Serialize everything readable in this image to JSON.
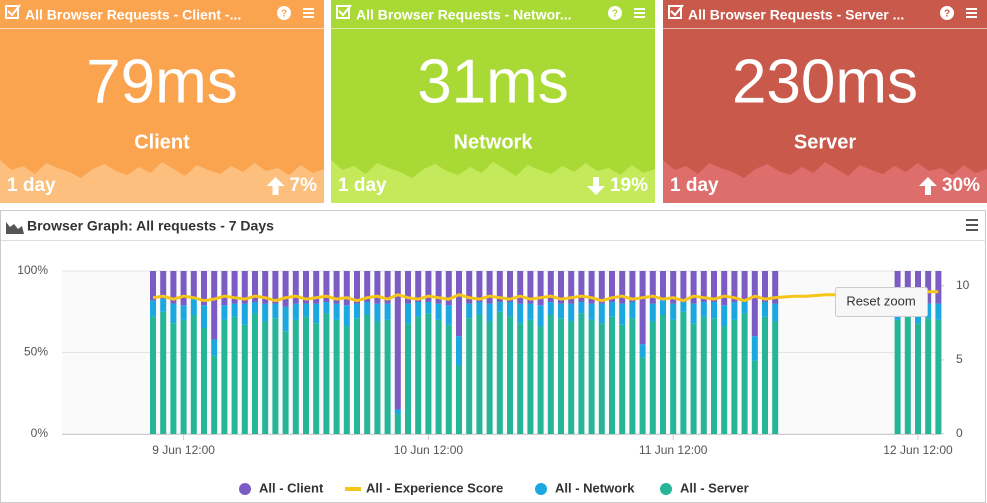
{
  "tiles": [
    {
      "title": "All Browser Requests - Client -...",
      "value": "79ms",
      "label": "Client",
      "period": "1 day",
      "change": "7%",
      "direction": "up",
      "color": "#fba44f",
      "spark": "#fdbf7e"
    },
    {
      "title": "All Browser Requests - Networ...",
      "value": "31ms",
      "label": "Network",
      "period": "1 day",
      "change": "19%",
      "direction": "down",
      "color": "#a8d934",
      "spark": "#c4ea5c"
    },
    {
      "title": "All Browser Requests - Server ...",
      "value": "230ms",
      "label": "Server",
      "period": "1 day",
      "change": "30%",
      "direction": "up",
      "color": "#c9594a",
      "spark": "#de6e6c"
    }
  ],
  "panel": {
    "title": "Browser Graph: All requests - 7 Days"
  },
  "reset_zoom": "Reset zoom",
  "chart_data": {
    "type": "bar",
    "stacked": true,
    "categories": [
      null,
      null,
      null,
      "9 Jun 12:00",
      null,
      null,
      null,
      null,
      null,
      null,
      null,
      null,
      null,
      null,
      null,
      null,
      null,
      null,
      null,
      null,
      null,
      null,
      null,
      null,
      null,
      null,
      null,
      "10 Jun 12:00",
      null,
      null,
      null,
      null,
      null,
      null,
      null,
      null,
      null,
      null,
      null,
      null,
      null,
      null,
      null,
      null,
      null,
      null,
      null,
      null,
      null,
      null,
      null,
      "11 Jun 12:00",
      null,
      null,
      null,
      null,
      null,
      null,
      null,
      null,
      null,
      null,
      null,
      null,
      null,
      null,
      null,
      null,
      null,
      null,
      null,
      null,
      null,
      null,
      null,
      "12 Jun 12:00",
      null,
      null
    ],
    "series": [
      {
        "name": "All - Client",
        "type": "bar",
        "color": "#7b5cc4",
        "values": [
          18,
          17,
          20,
          21,
          16,
          21,
          42,
          21,
          20,
          20,
          19,
          20,
          20,
          22,
          20,
          20,
          20,
          19,
          20,
          21,
          20,
          19,
          20,
          20,
          85,
          20,
          19,
          19,
          20,
          21,
          40,
          20,
          19,
          20,
          19,
          19,
          20,
          20,
          21,
          19,
          20,
          20,
          19,
          20,
          20,
          19,
          20,
          19,
          45,
          20,
          18,
          20,
          19,
          20,
          19,
          19,
          21,
          19,
          18,
          40,
          19,
          20,
          null,
          null,
          null,
          null,
          null,
          null,
          null,
          null,
          null,
          null,
          null,
          20,
          20,
          20,
          20,
          20
        ]
      },
      {
        "name": "All - Experience Score",
        "type": "line",
        "axis": "y2",
        "color": "#f5c518",
        "values": [
          9.2,
          9.3,
          9.1,
          9.3,
          9.2,
          9.0,
          9.1,
          9.3,
          9.2,
          9.1,
          9.3,
          9.2,
          9.0,
          9.2,
          9.3,
          9.1,
          9.2,
          9.3,
          9.1,
          9.2,
          9.0,
          9.2,
          9.3,
          9.1,
          9.4,
          9.2,
          9.1,
          9.3,
          9.2,
          9.1,
          9.4,
          9.2,
          9.1,
          9.3,
          9.2,
          9.1,
          9.3,
          9.1,
          9.2,
          9.3,
          9.1,
          9.2,
          9.3,
          9.2,
          9.0,
          9.2,
          9.3,
          9.1,
          9.2,
          9.3,
          9.1,
          9.2,
          9.0,
          9.3,
          9.2,
          9.1,
          9.3,
          9.2,
          9.0,
          9.3,
          9.1,
          9.2,
          9.25,
          9.3,
          9.3,
          9.35,
          9.4,
          9.4,
          9.45,
          9.5,
          9.5,
          9.55,
          9.6,
          9.6,
          9.6,
          9.6,
          9.6,
          9.6
        ]
      },
      {
        "name": "All - Network",
        "type": "bar",
        "color": "#1ba8e0",
        "values": [
          10,
          8,
          12,
          9,
          11,
          14,
          10,
          9,
          8,
          13,
          7,
          11,
          9,
          15,
          10,
          8,
          12,
          7,
          10,
          13,
          9,
          8,
          11,
          10,
          3,
          12,
          9,
          7,
          10,
          12,
          18,
          9,
          8,
          11,
          6,
          9,
          12,
          10,
          13,
          8,
          9,
          11,
          7,
          10,
          12,
          9,
          13,
          10,
          8,
          11,
          9,
          10,
          6,
          12,
          9,
          10,
          13,
          11,
          8,
          15,
          9,
          11,
          null,
          null,
          null,
          null,
          null,
          null,
          null,
          null,
          null,
          null,
          null,
          10,
          8,
          12,
          9,
          10
        ]
      },
      {
        "name": "All - Server",
        "type": "bar",
        "color": "#26b596",
        "values": [
          72,
          75,
          68,
          70,
          73,
          65,
          48,
          70,
          72,
          67,
          74,
          69,
          71,
          63,
          70,
          72,
          68,
          74,
          70,
          66,
          71,
          73,
          69,
          70,
          12,
          68,
          72,
          74,
          70,
          67,
          42,
          71,
          73,
          69,
          75,
          72,
          68,
          70,
          66,
          73,
          71,
          69,
          74,
          70,
          68,
          72,
          67,
          71,
          47,
          69,
          73,
          70,
          75,
          68,
          72,
          71,
          66,
          70,
          74,
          45,
          72,
          69,
          null,
          null,
          null,
          null,
          null,
          null,
          null,
          null,
          null,
          null,
          null,
          70,
          72,
          68,
          71,
          70
        ]
      }
    ],
    "ylim": [
      0,
      100
    ],
    "yticks": [
      {
        "value": 0,
        "label": "0%"
      },
      {
        "value": 50,
        "label": "50%"
      },
      {
        "value": 100,
        "label": "100%"
      }
    ],
    "y2lim": [
      0,
      11
    ],
    "y2ticks": [
      0,
      5,
      10
    ],
    "grid": true,
    "legend": "bottom"
  }
}
